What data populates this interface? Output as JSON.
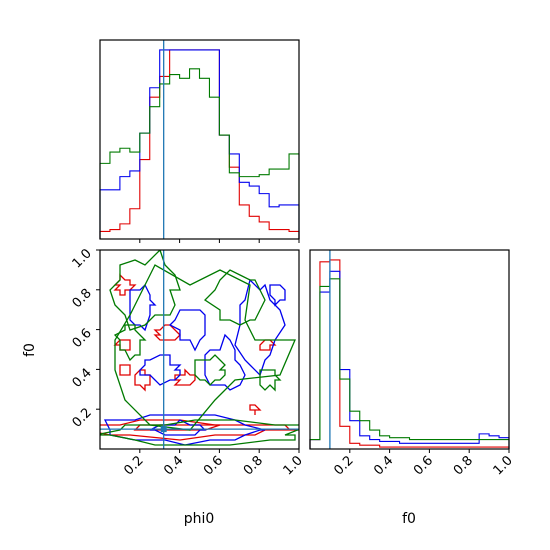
{
  "colors": {
    "red": "#e00000",
    "blue": "#0000ee",
    "green": "#007a00",
    "truth": "#1f77b4"
  },
  "chart_data": [
    {
      "type": "histogram",
      "panel": "phi0 marginal",
      "bins": [
        0.0,
        0.05,
        0.1,
        0.15,
        0.2,
        0.25,
        0.3,
        0.35,
        0.4,
        0.45,
        0.5,
        0.55,
        0.6,
        0.65,
        0.7,
        0.75,
        0.8,
        0.85,
        0.9,
        0.95,
        1.0
      ],
      "series": [
        {
          "color": "red",
          "heights": [
            0.04,
            0.05,
            0.08,
            0.16,
            0.42,
            0.75,
            0.86,
            1.0,
            1.0,
            1.0,
            1.0,
            1.0,
            0.55,
            0.38,
            0.18,
            0.12,
            0.09,
            0.05,
            0.05,
            0.04
          ]
        },
        {
          "color": "blue",
          "heights": [
            0.26,
            0.26,
            0.33,
            0.36,
            0.56,
            0.8,
            1.0,
            1.0,
            1.0,
            1.0,
            1.0,
            1.0,
            0.55,
            0.45,
            0.3,
            0.28,
            0.24,
            0.17,
            0.18,
            0.18
          ]
        },
        {
          "color": "green",
          "heights": [
            0.4,
            0.46,
            0.48,
            0.46,
            0.56,
            0.7,
            0.82,
            0.87,
            0.85,
            0.9,
            0.85,
            0.75,
            0.55,
            0.35,
            0.33,
            0.33,
            0.34,
            0.37,
            0.37,
            0.45
          ]
        }
      ],
      "truth": 0.32,
      "xlim": [
        0,
        1
      ]
    },
    {
      "type": "histogram",
      "panel": "f0 marginal",
      "bins": [
        0.0,
        0.05,
        0.1,
        0.15,
        0.2,
        0.25,
        0.3,
        0.35,
        0.4,
        0.45,
        0.5,
        0.55,
        0.6,
        0.65,
        0.7,
        0.75,
        0.8,
        0.85,
        0.9,
        0.95,
        1.0
      ],
      "series": [
        {
          "color": "red",
          "heights": [
            0.05,
            0.99,
            1.0,
            0.12,
            0.03,
            0.02,
            0.02,
            0.01,
            0.01,
            0.01,
            0.01,
            0.01,
            0.01,
            0.01,
            0.01,
            0.01,
            0.01,
            0.01,
            0.01,
            0.01
          ]
        },
        {
          "color": "blue",
          "heights": [
            0.05,
            0.83,
            0.94,
            0.42,
            0.15,
            0.07,
            0.05,
            0.04,
            0.04,
            0.03,
            0.03,
            0.03,
            0.03,
            0.03,
            0.03,
            0.03,
            0.03,
            0.08,
            0.07,
            0.06
          ]
        },
        {
          "color": "green",
          "heights": [
            0.05,
            0.86,
            0.9,
            0.37,
            0.2,
            0.15,
            0.1,
            0.07,
            0.06,
            0.06,
            0.05,
            0.05,
            0.05,
            0.05,
            0.05,
            0.05,
            0.05,
            0.05,
            0.05,
            0.05
          ]
        }
      ],
      "truth": 0.1,
      "xlim": [
        0,
        1
      ]
    },
    {
      "type": "contour",
      "panel": "phi0 vs f0",
      "xlabel": "phi0",
      "ylabel": "f0",
      "xlim": [
        0,
        1
      ],
      "ylim": [
        0,
        1
      ],
      "truth": {
        "x": 0.32,
        "y": 0.1
      },
      "series": [
        {
          "color": "red",
          "rings": [
            {
              "cx": 0.4,
              "cy": 0.1,
              "rx": 0.55,
              "ry": 0.04
            },
            {
              "cx": 0.38,
              "cy": 0.11,
              "rx": 0.18,
              "ry": 0.02
            },
            {
              "cx": 0.12,
              "cy": 0.82,
              "rx": 0.04,
              "ry": 0.04
            },
            {
              "cx": 0.12,
              "cy": 0.53,
              "rx": 0.03,
              "ry": 0.03
            },
            {
              "cx": 0.22,
              "cy": 0.35,
              "rx": 0.04,
              "ry": 0.04
            },
            {
              "cx": 0.43,
              "cy": 0.35,
              "rx": 0.05,
              "ry": 0.03
            },
            {
              "cx": 0.34,
              "cy": 0.58,
              "rx": 0.05,
              "ry": 0.04
            },
            {
              "cx": 0.84,
              "cy": 0.52,
              "rx": 0.03,
              "ry": 0.03
            },
            {
              "cx": 0.78,
              "cy": 0.2,
              "rx": 0.02,
              "ry": 0.02
            },
            {
              "cx": 0.12,
              "cy": 0.4,
              "rx": 0.03,
              "ry": 0.03
            }
          ]
        },
        {
          "color": "blue",
          "rings": [
            {
              "cx": 0.42,
              "cy": 0.1,
              "rx": 0.35,
              "ry": 0.07
            },
            {
              "cx": 0.4,
              "cy": 0.1,
              "rx": 0.12,
              "ry": 0.03
            },
            {
              "cx": 0.8,
              "cy": 0.62,
              "rx": 0.1,
              "ry": 0.22
            },
            {
              "cx": 0.2,
              "cy": 0.72,
              "rx": 0.07,
              "ry": 0.1
            },
            {
              "cx": 0.62,
              "cy": 0.42,
              "rx": 0.1,
              "ry": 0.12
            },
            {
              "cx": 0.45,
              "cy": 0.62,
              "rx": 0.07,
              "ry": 0.1
            },
            {
              "cx": 0.3,
              "cy": 0.4,
              "rx": 0.1,
              "ry": 0.06
            },
            {
              "cx": 0.9,
              "cy": 0.78,
              "rx": 0.04,
              "ry": 0.04
            }
          ]
        },
        {
          "color": "green",
          "rings": [
            {
              "cx": 0.48,
              "cy": 0.08,
              "rx": 0.5,
              "ry": 0.06
            },
            {
              "cx": 0.45,
              "cy": 0.55,
              "rx": 0.42,
              "ry": 0.38
            },
            {
              "cx": 0.22,
              "cy": 0.8,
              "rx": 0.16,
              "ry": 0.18
            },
            {
              "cx": 0.7,
              "cy": 0.75,
              "rx": 0.14,
              "ry": 0.15
            },
            {
              "cx": 0.55,
              "cy": 0.4,
              "rx": 0.08,
              "ry": 0.06
            },
            {
              "cx": 0.85,
              "cy": 0.35,
              "rx": 0.05,
              "ry": 0.05
            },
            {
              "cx": 0.15,
              "cy": 0.55,
              "rx": 0.06,
              "ry": 0.08
            }
          ]
        }
      ]
    }
  ],
  "axes": {
    "xticks": [
      "0.2",
      "0.4",
      "0.6",
      "0.8",
      "1.0"
    ],
    "yticks": [
      "0.2",
      "0.4",
      "0.6",
      "0.8",
      "1.0"
    ],
    "xlabel_left": "phi0",
    "xlabel_right": "f0",
    "ylabel": "f0"
  }
}
